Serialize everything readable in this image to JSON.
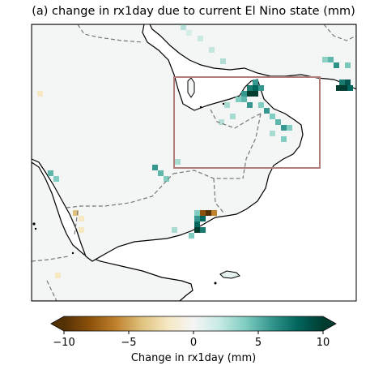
{
  "title": "(a) change in rx1day due to current El Nino state (mm)",
  "colorbar": {
    "label": "Change in rx1day (mm)",
    "ticks": [
      "−10",
      "−5",
      "0",
      "5",
      "10"
    ],
    "range": [
      -10,
      10
    ],
    "extend": "both",
    "colormap": "BrBG",
    "colors": [
      "#543005",
      "#8c510a",
      "#bf812d",
      "#dfc27d",
      "#f6e8c3",
      "#f5f5f5",
      "#c7eae5",
      "#80cdc1",
      "#35978f",
      "#01665e",
      "#003c30"
    ]
  },
  "map": {
    "region": "Arabian Peninsula",
    "highlight_box_color": "#b07c7c",
    "land_color": "#f2f5f4",
    "ocean_color": "#ffffff"
  }
}
